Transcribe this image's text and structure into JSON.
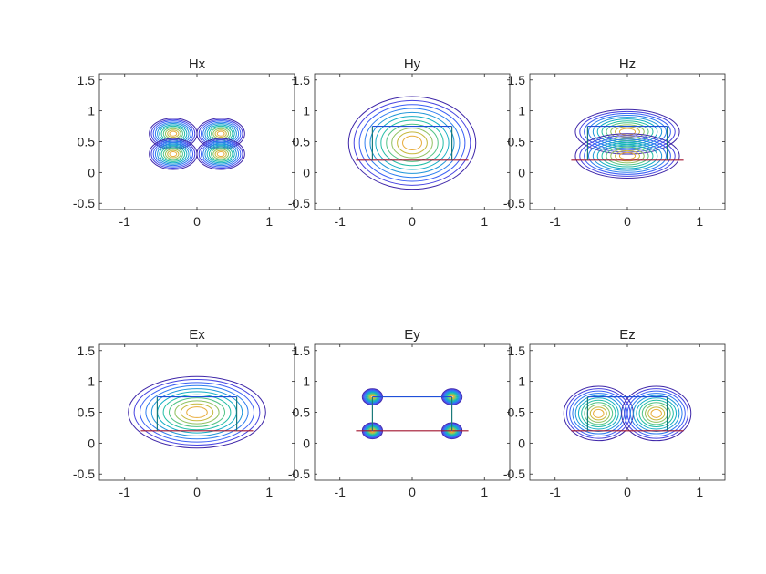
{
  "figure": {
    "rows": 2,
    "cols": 3
  },
  "contour_colors": [
    "#3e26a8",
    "#4743e0",
    "#3a5ff5",
    "#2c7cf0",
    "#1f96d9",
    "#11adc4",
    "#22bda5",
    "#52c485",
    "#8fc15f",
    "#c6b83d",
    "#e8ab38"
  ],
  "structure_colors": {
    "bottom": "#a2142f",
    "sides": "#1b7a7a",
    "top": "#1f4fd9"
  },
  "chart_data": [
    {
      "type": "contour",
      "title": "Hx",
      "xlim": [
        -1.35,
        1.35
      ],
      "ylim": [
        -0.6,
        1.6
      ],
      "xticks": [
        -1,
        0,
        1
      ],
      "yticks": [
        -0.5,
        0,
        0.5,
        1,
        1.5
      ],
      "grid": false,
      "pattern": "quad",
      "structure": {
        "x0": -0.55,
        "x1": 0.55,
        "y0": 0.2,
        "y1": 0.75,
        "draw": false
      },
      "extent": {
        "rx": 0.33,
        "ry": 0.25
      },
      "lobes": [
        {
          "cx": -0.33,
          "cy": 0.63
        },
        {
          "cx": 0.33,
          "cy": 0.63
        },
        {
          "cx": -0.33,
          "cy": 0.3
        },
        {
          "cx": 0.33,
          "cy": 0.3
        }
      ]
    },
    {
      "type": "contour",
      "title": "Hy",
      "xlim": [
        -1.35,
        1.35
      ],
      "ylim": [
        -0.6,
        1.6
      ],
      "xticks": [
        -1,
        0,
        1
      ],
      "yticks": [
        -0.5,
        0,
        0.5,
        1,
        1.5
      ],
      "grid": false,
      "pattern": "single",
      "structure": {
        "x0": -0.55,
        "x1": 0.55,
        "y0": 0.2,
        "y1": 0.75,
        "draw": true
      },
      "extent": {
        "rx": 0.88,
        "ry": 0.75
      },
      "lobes": [
        {
          "cx": 0,
          "cy": 0.48
        }
      ]
    },
    {
      "type": "contour",
      "title": "Hz",
      "xlim": [
        -1.35,
        1.35
      ],
      "ylim": [
        -0.6,
        1.6
      ],
      "xticks": [
        -1,
        0,
        1
      ],
      "yticks": [
        -0.5,
        0,
        0.5,
        1,
        1.5
      ],
      "grid": false,
      "pattern": "vertical-pair",
      "structure": {
        "x0": -0.55,
        "x1": 0.55,
        "y0": 0.2,
        "y1": 0.75,
        "draw": true
      },
      "extent": {
        "rx": 0.72,
        "ry": 0.36
      },
      "lobes": [
        {
          "cx": 0,
          "cy": 0.66
        },
        {
          "cx": 0,
          "cy": 0.27
        }
      ]
    },
    {
      "type": "contour",
      "title": "Ex",
      "xlim": [
        -1.35,
        1.35
      ],
      "ylim": [
        -0.6,
        1.6
      ],
      "xticks": [
        -1,
        0,
        1
      ],
      "yticks": [
        -0.5,
        0,
        0.5,
        1,
        1.5
      ],
      "grid": false,
      "pattern": "single",
      "structure": {
        "x0": -0.55,
        "x1": 0.55,
        "y0": 0.2,
        "y1": 0.75,
        "draw": true
      },
      "extent": {
        "rx": 0.95,
        "ry": 0.58
      },
      "lobes": [
        {
          "cx": 0,
          "cy": 0.5
        }
      ]
    },
    {
      "type": "contour",
      "title": "Ey",
      "xlim": [
        -1.35,
        1.35
      ],
      "ylim": [
        -0.6,
        1.6
      ],
      "xticks": [
        -1,
        0,
        1
      ],
      "yticks": [
        -0.5,
        0,
        0.5,
        1,
        1.5
      ],
      "grid": false,
      "pattern": "corners",
      "structure": {
        "x0": -0.55,
        "x1": 0.55,
        "y0": 0.2,
        "y1": 0.75,
        "draw": true
      },
      "extent": {
        "rx": 0.14,
        "ry": 0.13
      },
      "lobes": [
        {
          "cx": -0.55,
          "cy": 0.75
        },
        {
          "cx": 0.55,
          "cy": 0.75
        },
        {
          "cx": -0.55,
          "cy": 0.2
        },
        {
          "cx": 0.55,
          "cy": 0.2
        }
      ]
    },
    {
      "type": "contour",
      "title": "Ez",
      "xlim": [
        -1.35,
        1.35
      ],
      "ylim": [
        -0.6,
        1.6
      ],
      "xticks": [
        -1,
        0,
        1
      ],
      "yticks": [
        -0.5,
        0,
        0.5,
        1,
        1.5
      ],
      "grid": false,
      "pattern": "horizontal-pair",
      "structure": {
        "x0": -0.55,
        "x1": 0.55,
        "y0": 0.2,
        "y1": 0.75,
        "draw": true
      },
      "extent": {
        "rx": 0.48,
        "ry": 0.44
      },
      "lobes": [
        {
          "cx": -0.4,
          "cy": 0.48
        },
        {
          "cx": 0.4,
          "cy": 0.48
        }
      ]
    }
  ]
}
